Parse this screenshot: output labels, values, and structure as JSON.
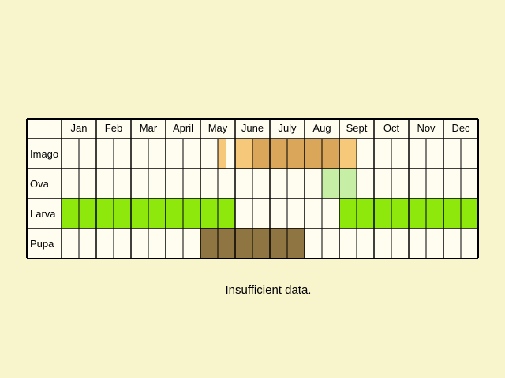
{
  "chart_data": {
    "type": "heatmap",
    "months": [
      "Jan",
      "Feb",
      "Mar",
      "April",
      "May",
      "June",
      "July",
      "Aug",
      "Sept",
      "Oct",
      "Nov",
      "Dec"
    ],
    "half_month_columns": 24,
    "stages": [
      {
        "name": "Imago",
        "cells": [
          {
            "from": 9.0,
            "to": 9.5,
            "color": "#f6c879"
          },
          {
            "from": 10.0,
            "to": 11.0,
            "color": "#f6c879"
          },
          {
            "from": 11.0,
            "to": 16.0,
            "color": "#d9a65a"
          },
          {
            "from": 16.0,
            "to": 17.0,
            "color": "#f6c879"
          }
        ]
      },
      {
        "name": "Ova",
        "cells": [
          {
            "from": 15.0,
            "to": 17.0,
            "color": "#c6eea4"
          }
        ]
      },
      {
        "name": "Larva",
        "cells": [
          {
            "from": 0.0,
            "to": 10.0,
            "color": "#8fe80b"
          },
          {
            "from": 16.0,
            "to": 24.0,
            "color": "#8fe80b"
          }
        ]
      },
      {
        "name": "Pupa",
        "cells": [
          {
            "from": 8.0,
            "to": 14.0,
            "color": "#8e7541"
          }
        ]
      }
    ]
  },
  "colors": {
    "background": "#f8f4cc",
    "cell": "#fffdf0",
    "grid": "#000000"
  },
  "note": "Insufficient data."
}
